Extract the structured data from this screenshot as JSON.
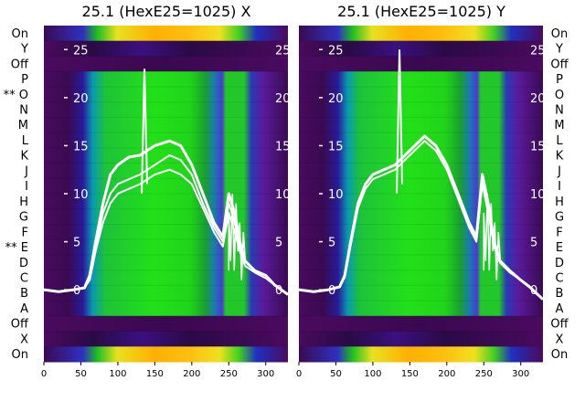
{
  "chart_data": [
    {
      "type": "heatmap",
      "title": "25.1 (HexE25=1025) X",
      "row_labels": [
        "On",
        "Y",
        "Off",
        "P",
        "** O",
        "N",
        "M",
        "L",
        "K",
        "J",
        "I",
        "H",
        "G",
        "F",
        "** E",
        "D",
        "C",
        "B",
        "A",
        "Off",
        "X",
        "On"
      ],
      "xticks": [
        0,
        50,
        100,
        150,
        200,
        250,
        300
      ],
      "xlim": [
        0,
        330
      ],
      "overlay_axis": {
        "ticks": [
          0,
          5,
          10,
          15,
          20,
          25
        ],
        "labels": [
          "0",
          "5",
          "10",
          "15",
          "20",
          "25"
        ],
        "ylim": [
          -7.5,
          27.5
        ]
      },
      "overlay_series": [
        {
          "x": [
            0,
            20,
            40,
            55,
            62,
            70,
            80,
            90,
            100,
            115,
            130,
            150,
            170,
            185,
            200,
            215,
            230,
            242,
            250,
            258,
            265,
            272,
            285,
            300,
            312,
            330
          ],
          "y": [
            0,
            -0.2,
            0,
            0.2,
            1.5,
            5,
            9,
            12,
            13,
            13.8,
            14,
            15,
            15.5,
            15,
            13,
            10,
            7,
            5.5,
            10,
            8,
            5,
            3,
            2,
            1.5,
            0.5,
            -0.5
          ]
        },
        {
          "x": [
            0,
            20,
            40,
            55,
            62,
            70,
            80,
            90,
            100,
            115,
            130,
            150,
            170,
            185,
            200,
            215,
            230,
            242,
            250,
            258,
            265,
            272,
            285,
            300,
            312,
            330
          ],
          "y": [
            0,
            -0.2,
            0,
            0.2,
            1.2,
            4.5,
            8,
            10,
            11,
            11.5,
            12,
            13,
            14,
            13.5,
            12,
            9,
            6.5,
            5,
            9,
            7,
            4.5,
            3,
            2,
            1.5,
            0.5,
            -0.5
          ]
        },
        {
          "x": [
            0,
            20,
            40,
            55,
            62,
            70,
            80,
            90,
            100,
            115,
            130,
            150,
            170,
            185,
            200,
            215,
            230,
            242,
            250,
            258,
            265,
            272,
            285,
            300,
            312,
            330
          ],
          "y": [
            0,
            -0.2,
            0,
            0.2,
            1,
            4,
            7,
            9,
            10,
            10.5,
            11,
            12,
            12.5,
            12,
            11,
            8.5,
            6,
            4.5,
            8,
            6,
            4,
            2.5,
            1.8,
            1.2,
            0.5,
            -0.5
          ]
        }
      ],
      "spike": {
        "x": 136,
        "y": 23
      }
    },
    {
      "type": "heatmap",
      "title": "25.1 (HexE25=1025) Y",
      "row_labels": [
        "On",
        "Y",
        "Off",
        "P",
        "O",
        "N",
        "M",
        "L",
        "K",
        "J",
        "I",
        "H",
        "G",
        "F",
        "E",
        "D",
        "C",
        "B",
        "A",
        "Off",
        "X",
        "On"
      ],
      "xticks": [
        0,
        50,
        100,
        150,
        200,
        250,
        300
      ],
      "xlim": [
        0,
        330
      ],
      "overlay_axis": {
        "ticks": [
          0,
          5,
          10,
          15,
          20,
          25
        ],
        "labels": [
          "0",
          "5",
          "10",
          "15",
          "20",
          "25"
        ],
        "ylim": [
          -7.5,
          27.5
        ]
      },
      "overlay_series": [
        {
          "x": [
            0,
            20,
            40,
            55,
            62,
            70,
            80,
            90,
            100,
            115,
            130,
            150,
            170,
            185,
            200,
            215,
            230,
            240,
            248,
            256,
            264,
            272,
            285,
            300,
            312,
            330
          ],
          "y": [
            0,
            -0.2,
            0,
            0.3,
            1.5,
            5,
            9,
            11,
            12,
            12.5,
            13,
            14.5,
            16,
            15,
            13,
            10,
            7,
            5.5,
            12,
            9,
            5,
            3,
            2,
            1,
            0.3,
            -1
          ]
        },
        {
          "x": [
            0,
            20,
            40,
            55,
            62,
            70,
            80,
            90,
            100,
            115,
            130,
            150,
            170,
            185,
            200,
            215,
            230,
            240,
            248,
            256,
            264,
            272,
            285,
            300,
            312,
            330
          ],
          "y": [
            0,
            -0.2,
            0,
            0.3,
            1.3,
            4.6,
            8.5,
            10.5,
            11.5,
            12,
            12.5,
            14,
            15.5,
            14.5,
            12.5,
            9.5,
            6.5,
            5,
            11,
            8,
            4.5,
            2.8,
            1.8,
            1,
            0.3,
            -1
          ]
        }
      ],
      "spike": {
        "x": 136,
        "y": 25
      }
    }
  ]
}
